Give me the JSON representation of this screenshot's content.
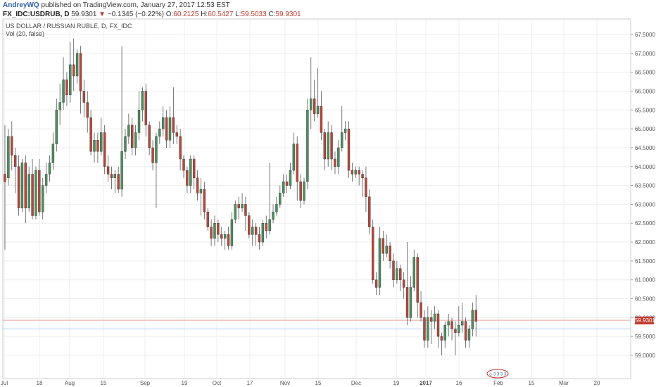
{
  "header": {
    "author": "AndreyWQ",
    "published": "published on TradingView.com, January 27, 2017 12:53 EST",
    "symbol": "FX_IDC:USDRUB, D",
    "last": "59.9301",
    "change_arrow": "▼",
    "change": "−0.1345 (−0.22%)",
    "o_label": "O:",
    "o": "60.2125",
    "h_label": "H:",
    "h": "60.5427",
    "l_label": "L:",
    "l": "59.5033",
    "c_label": "C:",
    "c": "59.9301"
  },
  "colors": {
    "up": "#4a8f5c",
    "down": "#b8463a",
    "last_line": "#e8a39d",
    "blue_line": "#aad0ea",
    "grid": "#eeeeee",
    "axis": "#555555"
  },
  "chart_data": {
    "type": "candlestick",
    "title": "US DOLLAR / RUSSIAN RUBLE, D, FX_IDC",
    "indicator": "Vol (20, false)",
    "ylim": [
      59.0,
      67.5
    ],
    "y_ticks": [
      "67.5000",
      "67.0000",
      "66.5000",
      "66.0000",
      "65.5000",
      "65.0000",
      "64.5000",
      "64.0000",
      "63.5000",
      "63.0000",
      "62.5000",
      "62.0000",
      "61.5000",
      "61.0000",
      "60.5000",
      "60.0000",
      "59.5000",
      "59.0000"
    ],
    "x_ticks": [
      "Jul",
      "18",
      "Aug",
      "15",
      "Sep",
      "19",
      "Oct",
      "17",
      "Nov",
      "15",
      "Dec",
      "19",
      "2017",
      "16",
      "Feb",
      "15",
      "Mar",
      "20"
    ],
    "last_price": 59.9301,
    "last_price_label": "59.9301",
    "blue_line_price": 59.7,
    "candles": [
      [
        63.8,
        63.6,
        65.1,
        61.8
      ],
      [
        63.7,
        64.8,
        65.0,
        63.5
      ],
      [
        64.8,
        64.3,
        65.2,
        63.9
      ],
      [
        64.3,
        64.0,
        64.5,
        63.3
      ],
      [
        64.0,
        62.9,
        64.3,
        62.7
      ],
      [
        62.9,
        64.1,
        64.2,
        62.8
      ],
      [
        64.1,
        62.9,
        64.3,
        62.5
      ],
      [
        62.9,
        63.8,
        64.0,
        62.8
      ],
      [
        63.8,
        62.7,
        64.2,
        62.6
      ],
      [
        62.7,
        63.9,
        64.0,
        62.6
      ],
      [
        63.9,
        62.8,
        64.2,
        62.7
      ],
      [
        62.8,
        63.5,
        63.7,
        62.6
      ],
      [
        63.5,
        63.8,
        64.1,
        63.3
      ],
      [
        63.8,
        64.1,
        64.3,
        63.6
      ],
      [
        64.1,
        64.6,
        64.9,
        63.9
      ],
      [
        64.6,
        65.5,
        65.8,
        64.4
      ],
      [
        65.5,
        65.7,
        66.2,
        65.1
      ],
      [
        65.7,
        66.3,
        66.9,
        65.5
      ],
      [
        66.3,
        65.9,
        66.5,
        65.6
      ],
      [
        65.9,
        66.7,
        67.3,
        65.7
      ],
      [
        66.7,
        66.4,
        67.4,
        66.0
      ],
      [
        66.4,
        67.0,
        67.1,
        66.2
      ],
      [
        67.0,
        66.0,
        67.2,
        65.4
      ],
      [
        66.0,
        65.7,
        66.3,
        65.3
      ],
      [
        65.7,
        65.3,
        66.0,
        64.9
      ],
      [
        65.3,
        64.4,
        65.5,
        64.3
      ],
      [
        64.4,
        64.7,
        64.9,
        64.1
      ],
      [
        64.7,
        64.4,
        64.9,
        64.1
      ],
      [
        64.4,
        64.9,
        65.3,
        64.3
      ],
      [
        64.9,
        64.0,
        65.1,
        63.8
      ],
      [
        64.0,
        63.8,
        64.3,
        63.6
      ],
      [
        63.8,
        63.7,
        64.0,
        63.4
      ],
      [
        63.7,
        63.8,
        63.9,
        63.3
      ],
      [
        63.8,
        63.4,
        64.0,
        63.3
      ],
      [
        63.4,
        64.4,
        67.2,
        63.2
      ],
      [
        64.4,
        64.8,
        65.0,
        64.2
      ],
      [
        64.8,
        65.1,
        65.4,
        64.6
      ],
      [
        65.1,
        64.5,
        65.3,
        64.3
      ],
      [
        64.5,
        64.9,
        65.1,
        64.3
      ],
      [
        64.9,
        65.5,
        66.0,
        64.7
      ],
      [
        65.5,
        66.0,
        66.1,
        65.2
      ],
      [
        66.0,
        65.1,
        66.2,
        64.8
      ],
      [
        65.1,
        64.5,
        65.2,
        64.3
      ],
      [
        64.5,
        64.1,
        64.7,
        63.9
      ],
      [
        64.1,
        64.8,
        64.9,
        62.9
      ],
      [
        64.8,
        65.0,
        65.2,
        64.6
      ],
      [
        65.0,
        65.3,
        65.6,
        64.8
      ],
      [
        65.3,
        64.7,
        65.5,
        64.5
      ],
      [
        64.7,
        65.3,
        65.6,
        64.5
      ],
      [
        65.3,
        64.9,
        66.1,
        64.6
      ],
      [
        64.9,
        64.8,
        65.1,
        64.6
      ],
      [
        64.8,
        64.2,
        65.0,
        63.9
      ],
      [
        64.2,
        63.9,
        64.3,
        63.7
      ],
      [
        63.9,
        63.5,
        64.0,
        63.3
      ],
      [
        63.5,
        64.2,
        64.3,
        63.3
      ],
      [
        64.2,
        63.7,
        64.3,
        63.4
      ],
      [
        63.7,
        63.3,
        63.9,
        63.1
      ],
      [
        63.3,
        63.4,
        63.7,
        62.7
      ],
      [
        63.4,
        62.8,
        63.6,
        62.6
      ],
      [
        62.8,
        62.4,
        62.9,
        62.3
      ],
      [
        62.4,
        62.1,
        62.6,
        61.9
      ],
      [
        62.1,
        62.5,
        62.7,
        61.9
      ],
      [
        62.5,
        62.2,
        62.6,
        62.0
      ],
      [
        62.2,
        62.1,
        62.4,
        61.9
      ],
      [
        62.1,
        62.2,
        62.3,
        61.8
      ],
      [
        62.2,
        61.9,
        62.4,
        61.8
      ],
      [
        61.9,
        62.6,
        62.8,
        61.8
      ],
      [
        62.6,
        63.0,
        63.1,
        62.5
      ],
      [
        63.0,
        62.9,
        63.2,
        62.6
      ],
      [
        62.9,
        63.0,
        63.3,
        62.8
      ],
      [
        63.0,
        62.7,
        63.2,
        62.3
      ],
      [
        62.7,
        62.2,
        62.8,
        62.1
      ],
      [
        62.2,
        62.4,
        62.6,
        61.9
      ],
      [
        62.4,
        62.2,
        62.5,
        61.9
      ],
      [
        62.2,
        62.0,
        62.4,
        61.8
      ],
      [
        62.0,
        62.5,
        62.6,
        61.9
      ],
      [
        62.5,
        62.3,
        62.7,
        62.1
      ],
      [
        62.3,
        62.6,
        64.1,
        62.2
      ],
      [
        62.6,
        62.8,
        63.0,
        62.5
      ],
      [
        62.8,
        63.0,
        63.2,
        62.7
      ],
      [
        63.0,
        63.3,
        63.5,
        62.9
      ],
      [
        63.3,
        63.6,
        63.8,
        63.2
      ],
      [
        63.6,
        63.5,
        63.8,
        63.3
      ],
      [
        63.5,
        63.9,
        64.1,
        63.4
      ],
      [
        63.9,
        64.6,
        64.9,
        63.8
      ],
      [
        64.6,
        63.6,
        64.8,
        63.1
      ],
      [
        63.6,
        63.1,
        63.8,
        62.9
      ],
      [
        63.1,
        63.6,
        63.7,
        63.0
      ],
      [
        63.6,
        65.5,
        65.8,
        63.4
      ],
      [
        65.5,
        65.8,
        66.9,
        65.0
      ],
      [
        65.8,
        65.4,
        66.3,
        65.2
      ],
      [
        65.4,
        65.6,
        66.6,
        65.3
      ],
      [
        65.6,
        64.9,
        66.0,
        64.7
      ],
      [
        64.9,
        64.2,
        65.0,
        63.9
      ],
      [
        64.2,
        64.9,
        65.2,
        64.0
      ],
      [
        64.9,
        64.2,
        65.1,
        63.9
      ],
      [
        64.2,
        64.0,
        64.4,
        63.8
      ],
      [
        64.0,
        64.5,
        64.7,
        63.8
      ],
      [
        64.5,
        64.9,
        65.6,
        64.4
      ],
      [
        64.9,
        65.0,
        65.2,
        64.7
      ],
      [
        65.0,
        63.9,
        65.2,
        63.7
      ],
      [
        63.9,
        63.8,
        64.1,
        63.6
      ],
      [
        63.8,
        63.9,
        64.0,
        63.7
      ],
      [
        63.9,
        63.8,
        64.0,
        63.5
      ],
      [
        63.8,
        63.7,
        63.9,
        63.2
      ],
      [
        63.7,
        63.2,
        64.0,
        62.8
      ],
      [
        63.2,
        62.4,
        63.4,
        62.2
      ],
      [
        62.4,
        61.0,
        62.6,
        60.9
      ],
      [
        61.0,
        60.8,
        61.2,
        60.6
      ],
      [
        60.8,
        62.1,
        62.4,
        60.6
      ],
      [
        62.1,
        61.7,
        62.3,
        61.5
      ],
      [
        61.7,
        61.9,
        62.2,
        61.6
      ],
      [
        61.9,
        61.5,
        62.0,
        61.3
      ],
      [
        61.5,
        61.0,
        61.7,
        60.8
      ],
      [
        61.0,
        61.3,
        61.5,
        60.9
      ],
      [
        61.3,
        61.0,
        61.4,
        60.7
      ],
      [
        61.0,
        60.8,
        61.2,
        60.5
      ],
      [
        60.8,
        60.0,
        62.0,
        59.8
      ],
      [
        60.0,
        60.8,
        61.1,
        59.9
      ],
      [
        60.8,
        61.6,
        61.8,
        60.7
      ],
      [
        61.6,
        60.4,
        61.7,
        60.0
      ],
      [
        60.4,
        60.0,
        60.7,
        59.9
      ],
      [
        60.0,
        59.4,
        60.2,
        59.2
      ],
      [
        59.4,
        60.0,
        60.3,
        59.2
      ],
      [
        60.0,
        59.9,
        60.2,
        59.3
      ],
      [
        59.9,
        60.1,
        60.3,
        59.7
      ],
      [
        60.1,
        59.5,
        60.2,
        59.2
      ],
      [
        59.5,
        59.4,
        59.6,
        59.0
      ],
      [
        59.4,
        59.8,
        59.9,
        59.2
      ],
      [
        59.8,
        59.9,
        60.1,
        59.5
      ],
      [
        59.9,
        59.7,
        60.0,
        59.4
      ],
      [
        59.7,
        59.6,
        59.9,
        59.0
      ],
      [
        59.6,
        59.8,
        60.3,
        59.5
      ],
      [
        59.8,
        59.9,
        60.4,
        59.6
      ],
      [
        59.9,
        59.4,
        60.0,
        59.2
      ],
      [
        59.4,
        59.7,
        59.8,
        59.2
      ],
      [
        59.7,
        60.2,
        60.4,
        59.5
      ],
      [
        60.2,
        59.9,
        60.6,
        59.5
      ]
    ]
  },
  "logo": {
    "text": "◇ 3 3 3 3"
  }
}
